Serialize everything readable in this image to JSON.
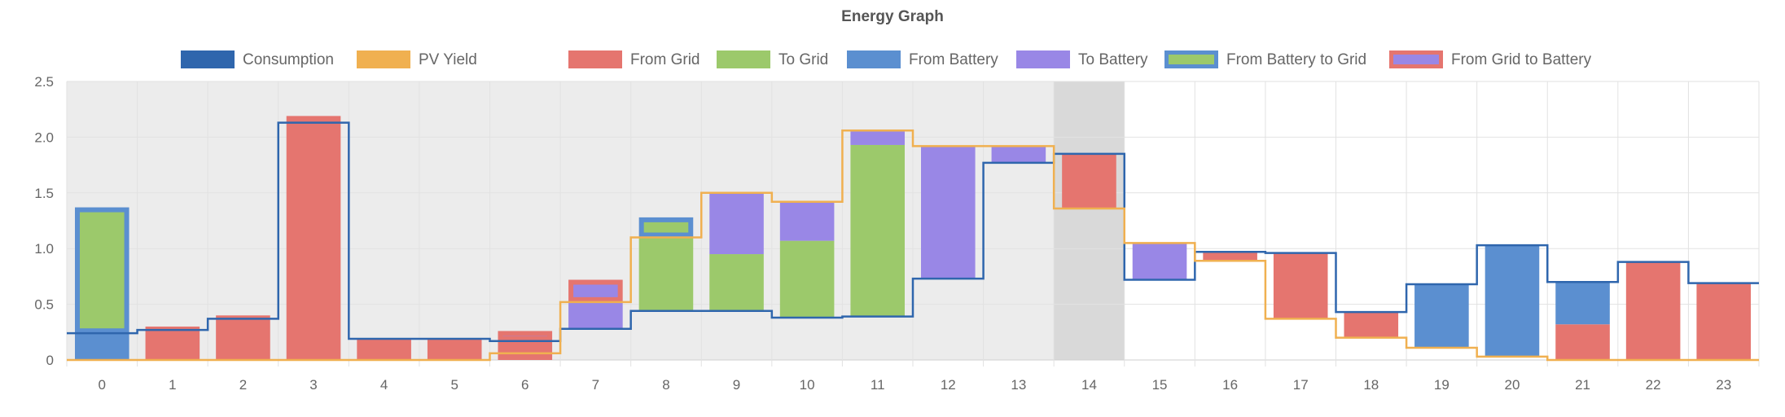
{
  "chart_data": {
    "type": "bar",
    "title": "Energy Graph",
    "xlabel": "",
    "ylabel": "",
    "ylim": [
      0,
      2.5
    ],
    "yticks": [
      "0",
      "0.5",
      "1.0",
      "1.5",
      "2.0",
      "2.5"
    ],
    "categories": [
      "0",
      "1",
      "2",
      "3",
      "4",
      "5",
      "6",
      "7",
      "8",
      "9",
      "10",
      "11",
      "12",
      "13",
      "14",
      "15",
      "16",
      "17",
      "18",
      "19",
      "20",
      "21",
      "22",
      "23"
    ],
    "grid": true,
    "legend_position": "top",
    "shaded_past_hours": [
      0,
      13
    ],
    "highlighted_hour": 14,
    "colors": {
      "consumption": "#2f66ad",
      "pv_yield": "#f0b050",
      "from_grid": "#e5756f",
      "to_grid": "#9cc96b",
      "from_battery": "#5b8fd0",
      "to_battery": "#9987e6",
      "past_shade": "#ececec",
      "current_shade": "#d9d9d9",
      "grid": "#e2e2e2"
    },
    "legend": [
      {
        "key": "consumption",
        "label": "Consumption"
      },
      {
        "key": "pv_yield",
        "label": "PV Yield"
      },
      {
        "key": "from_grid",
        "label": "From Grid"
      },
      {
        "key": "to_grid",
        "label": "To Grid"
      },
      {
        "key": "from_battery",
        "label": "From Battery"
      },
      {
        "key": "to_battery",
        "label": "To Battery"
      },
      {
        "key": "from_battery_to_grid",
        "label": "From Battery to Grid"
      },
      {
        "key": "from_grid_to_battery",
        "label": "From Grid to Battery"
      }
    ],
    "series": [
      {
        "name": "Consumption",
        "type": "step-line",
        "values": [
          0.24,
          0.27,
          0.37,
          2.13,
          0.19,
          0.19,
          0.17,
          0.28,
          0.44,
          0.44,
          0.38,
          0.39,
          0.73,
          1.77,
          1.85,
          0.72,
          0.97,
          0.96,
          0.43,
          0.68,
          1.03,
          0.7,
          0.88,
          0.69
        ]
      },
      {
        "name": "PV Yield",
        "type": "step-line",
        "values": [
          0,
          0,
          0,
          0,
          0,
          0,
          0.06,
          0.52,
          1.1,
          1.5,
          1.42,
          2.06,
          1.92,
          1.92,
          1.36,
          1.05,
          0.89,
          0.37,
          0.2,
          0.11,
          0.03,
          0,
          0,
          0
        ]
      }
    ],
    "bars": [
      {
        "hour": 0,
        "stack": [
          {
            "kind": "from_battery",
            "from": 0,
            "to": 0.24
          },
          {
            "kind": "from_battery_to_grid",
            "from": 0.24,
            "to": 1.37
          }
        ]
      },
      {
        "hour": 1,
        "stack": [
          {
            "kind": "from_grid",
            "from": 0,
            "to": 0.3
          }
        ]
      },
      {
        "hour": 2,
        "stack": [
          {
            "kind": "from_grid",
            "from": 0,
            "to": 0.4
          }
        ]
      },
      {
        "hour": 3,
        "stack": [
          {
            "kind": "from_grid",
            "from": 0,
            "to": 2.19
          }
        ]
      },
      {
        "hour": 4,
        "stack": [
          {
            "kind": "from_grid",
            "from": 0,
            "to": 0.19
          }
        ]
      },
      {
        "hour": 5,
        "stack": [
          {
            "kind": "from_grid",
            "from": 0,
            "to": 0.19
          }
        ]
      },
      {
        "hour": 6,
        "stack": [
          {
            "kind": "from_grid",
            "from": 0,
            "to": 0.17
          },
          {
            "kind": "from_grid_to_battery",
            "from": 0.17,
            "to": 0.26
          }
        ]
      },
      {
        "hour": 7,
        "stack": [
          {
            "kind": "to_battery",
            "from": 0.28,
            "to": 0.52
          },
          {
            "kind": "from_grid_to_battery",
            "from": 0.52,
            "to": 0.72
          }
        ]
      },
      {
        "hour": 8,
        "stack": [
          {
            "kind": "to_grid",
            "from": 0.44,
            "to": 1.1
          },
          {
            "kind": "from_battery_to_grid",
            "from": 1.1,
            "to": 1.28
          }
        ]
      },
      {
        "hour": 9,
        "stack": [
          {
            "kind": "to_grid",
            "from": 0.44,
            "to": 0.95
          },
          {
            "kind": "to_battery",
            "from": 0.95,
            "to": 1.5
          }
        ]
      },
      {
        "hour": 10,
        "stack": [
          {
            "kind": "to_grid",
            "from": 0.38,
            "to": 1.07
          },
          {
            "kind": "to_battery",
            "from": 1.07,
            "to": 1.42
          }
        ]
      },
      {
        "hour": 11,
        "stack": [
          {
            "kind": "to_grid",
            "from": 0.39,
            "to": 1.93
          },
          {
            "kind": "to_battery",
            "from": 1.93,
            "to": 2.06
          }
        ]
      },
      {
        "hour": 12,
        "stack": [
          {
            "kind": "to_battery",
            "from": 0.73,
            "to": 1.92
          }
        ]
      },
      {
        "hour": 13,
        "stack": [
          {
            "kind": "to_battery",
            "from": 1.77,
            "to": 1.92
          }
        ]
      },
      {
        "hour": 14,
        "stack": [
          {
            "kind": "from_grid",
            "from": 1.36,
            "to": 1.85
          }
        ]
      },
      {
        "hour": 15,
        "stack": [
          {
            "kind": "to_battery",
            "from": 0.72,
            "to": 1.05
          }
        ]
      },
      {
        "hour": 16,
        "stack": [
          {
            "kind": "from_grid",
            "from": 0.89,
            "to": 0.97
          }
        ]
      },
      {
        "hour": 17,
        "stack": [
          {
            "kind": "from_grid",
            "from": 0.37,
            "to": 0.96
          }
        ]
      },
      {
        "hour": 18,
        "stack": [
          {
            "kind": "from_grid",
            "from": 0.2,
            "to": 0.43
          }
        ]
      },
      {
        "hour": 19,
        "stack": [
          {
            "kind": "from_battery",
            "from": 0.11,
            "to": 0.68
          }
        ]
      },
      {
        "hour": 20,
        "stack": [
          {
            "kind": "from_battery",
            "from": 0.03,
            "to": 1.03
          }
        ]
      },
      {
        "hour": 21,
        "stack": [
          {
            "kind": "from_grid",
            "from": 0,
            "to": 0.32
          },
          {
            "kind": "from_battery",
            "from": 0.32,
            "to": 0.7
          }
        ]
      },
      {
        "hour": 22,
        "stack": [
          {
            "kind": "from_grid",
            "from": 0,
            "to": 0.88
          }
        ]
      },
      {
        "hour": 23,
        "stack": [
          {
            "kind": "from_grid",
            "from": 0,
            "to": 0.69
          }
        ]
      }
    ]
  }
}
